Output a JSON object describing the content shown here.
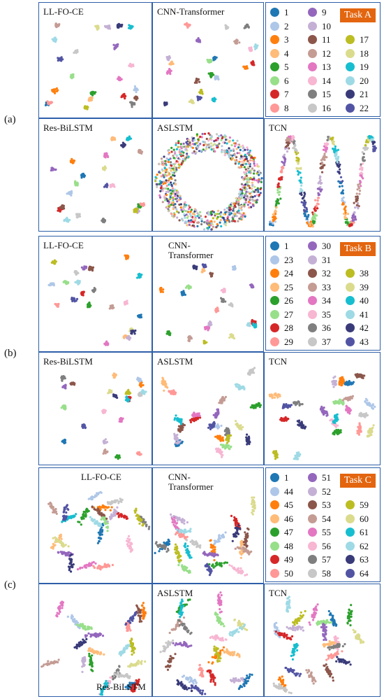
{
  "figure": {
    "tasks": [
      {
        "label": "(a)",
        "badge": "Task A",
        "panels": [
          "LL-FO-CE",
          "CNN-Transformer",
          "Res-BiLSTM",
          "ASLSTM",
          "TCN"
        ],
        "legend": [
          {
            "name": "1",
            "color": "#1f77b4"
          },
          {
            "name": "2",
            "color": "#aec7e8"
          },
          {
            "name": "3",
            "color": "#ff7f0e"
          },
          {
            "name": "4",
            "color": "#ffbb78"
          },
          {
            "name": "5",
            "color": "#2ca02c"
          },
          {
            "name": "6",
            "color": "#98df8a"
          },
          {
            "name": "7",
            "color": "#d62728"
          },
          {
            "name": "8",
            "color": "#ff9896"
          },
          {
            "name": "9",
            "color": "#9467bd"
          },
          {
            "name": "10",
            "color": "#c5b0d5"
          },
          {
            "name": "11",
            "color": "#8c564b"
          },
          {
            "name": "12",
            "color": "#c49c94"
          },
          {
            "name": "13",
            "color": "#e377c2"
          },
          {
            "name": "14",
            "color": "#f7b6d2"
          },
          {
            "name": "15",
            "color": "#7f7f7f"
          },
          {
            "name": "16",
            "color": "#c7c7c7"
          },
          {
            "name": "17",
            "color": "#bcbd22"
          },
          {
            "name": "18",
            "color": "#dbdb8d"
          },
          {
            "name": "19",
            "color": "#17becf"
          },
          {
            "name": "20",
            "color": "#9edae5"
          },
          {
            "name": "21",
            "color": "#393b79"
          },
          {
            "name": "22",
            "color": "#5254a3"
          }
        ]
      },
      {
        "label": "(b)",
        "badge": "Task B",
        "panels": [
          "LL-FO-CE",
          "CNN-Transformer",
          "Res-BiLSTM",
          "ASLSTM",
          "TCN"
        ],
        "legend": [
          {
            "name": "1",
            "color": "#1f77b4"
          },
          {
            "name": "23",
            "color": "#aec7e8"
          },
          {
            "name": "24",
            "color": "#ff7f0e"
          },
          {
            "name": "25",
            "color": "#ffbb78"
          },
          {
            "name": "26",
            "color": "#2ca02c"
          },
          {
            "name": "27",
            "color": "#98df8a"
          },
          {
            "name": "28",
            "color": "#d62728"
          },
          {
            "name": "29",
            "color": "#ff9896"
          },
          {
            "name": "30",
            "color": "#9467bd"
          },
          {
            "name": "31",
            "color": "#c5b0d5"
          },
          {
            "name": "32",
            "color": "#8c564b"
          },
          {
            "name": "33",
            "color": "#c49c94"
          },
          {
            "name": "34",
            "color": "#e377c2"
          },
          {
            "name": "35",
            "color": "#f7b6d2"
          },
          {
            "name": "36",
            "color": "#7f7f7f"
          },
          {
            "name": "37",
            "color": "#c7c7c7"
          },
          {
            "name": "38",
            "color": "#bcbd22"
          },
          {
            "name": "39",
            "color": "#dbdb8d"
          },
          {
            "name": "40",
            "color": "#17becf"
          },
          {
            "name": "41",
            "color": "#9edae5"
          },
          {
            "name": "42",
            "color": "#393b79"
          },
          {
            "name": "43",
            "color": "#5254a3"
          }
        ]
      },
      {
        "label": "(c)",
        "badge": "Task C",
        "panels": [
          "LL-FO-CE",
          "CNN-Transformer",
          "Res-BiLSTM",
          "ASLSTM",
          "TCN"
        ],
        "legend": [
          {
            "name": "1",
            "color": "#1f77b4"
          },
          {
            "name": "44",
            "color": "#aec7e8"
          },
          {
            "name": "45",
            "color": "#ff7f0e"
          },
          {
            "name": "46",
            "color": "#ffbb78"
          },
          {
            "name": "47",
            "color": "#2ca02c"
          },
          {
            "name": "48",
            "color": "#98df8a"
          },
          {
            "name": "49",
            "color": "#d62728"
          },
          {
            "name": "50",
            "color": "#ff9896"
          },
          {
            "name": "51",
            "color": "#9467bd"
          },
          {
            "name": "52",
            "color": "#c5b0d5"
          },
          {
            "name": "53",
            "color": "#8c564b"
          },
          {
            "name": "54",
            "color": "#c49c94"
          },
          {
            "name": "55",
            "color": "#e377c2"
          },
          {
            "name": "56",
            "color": "#f7b6d2"
          },
          {
            "name": "57",
            "color": "#7f7f7f"
          },
          {
            "name": "58",
            "color": "#c7c7c7"
          },
          {
            "name": "59",
            "color": "#bcbd22"
          },
          {
            "name": "60",
            "color": "#dbdb8d"
          },
          {
            "name": "61",
            "color": "#17becf"
          },
          {
            "name": "62",
            "color": "#9edae5"
          },
          {
            "name": "63",
            "color": "#393b79"
          },
          {
            "name": "64",
            "color": "#5254a3"
          }
        ]
      }
    ]
  }
}
